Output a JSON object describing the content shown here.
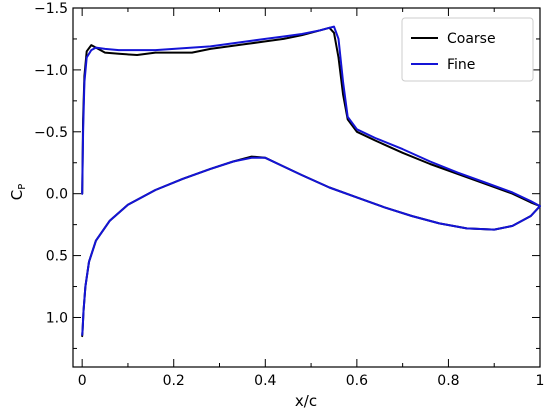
{
  "chart_data": {
    "type": "line",
    "title": "",
    "xlabel": "x/c",
    "ylabel_main": "C",
    "ylabel_sub": "P",
    "xlim": [
      -0.02,
      1.0
    ],
    "ylim": [
      1.4,
      -1.5
    ],
    "y_inverted": true,
    "grid": false,
    "legend_position": "top-right",
    "x_ticks": [
      0,
      0.2,
      0.4,
      0.6,
      0.8,
      1
    ],
    "x_tick_labels": [
      "0",
      "0.2",
      "0.4",
      "0.6",
      "0.8",
      "1"
    ],
    "y_ticks": [
      -1.5,
      -1.0,
      -0.5,
      0.0,
      0.5,
      1.0
    ],
    "y_tick_labels": [
      "−1.5",
      "−1.0",
      "−0.5",
      "0.0",
      "0.5",
      "1.0"
    ],
    "series": [
      {
        "name": "Coarse",
        "color": "#000000",
        "x": [
          0.0,
          0.002,
          0.005,
          0.01,
          0.02,
          0.03,
          0.05,
          0.08,
          0.12,
          0.16,
          0.2,
          0.24,
          0.28,
          0.32,
          0.36,
          0.4,
          0.44,
          0.48,
          0.52,
          0.54,
          0.55,
          0.56,
          0.57,
          0.58,
          0.6,
          0.64,
          0.7,
          0.76,
          0.82,
          0.88,
          0.94,
          0.98,
          1.0,
          0.98,
          0.94,
          0.9,
          0.84,
          0.78,
          0.72,
          0.66,
          0.6,
          0.54,
          0.48,
          0.44,
          0.4,
          0.37,
          0.33,
          0.28,
          0.22,
          0.16,
          0.1,
          0.06,
          0.03,
          0.015,
          0.007,
          0.003,
          0.001,
          0.0
        ],
        "y": [
          0.0,
          -0.6,
          -0.95,
          -1.15,
          -1.2,
          -1.18,
          -1.14,
          -1.13,
          -1.12,
          -1.14,
          -1.14,
          -1.14,
          -1.17,
          -1.19,
          -1.21,
          -1.23,
          -1.25,
          -1.28,
          -1.32,
          -1.34,
          -1.3,
          -1.1,
          -0.8,
          -0.6,
          -0.5,
          -0.43,
          -0.33,
          -0.24,
          -0.16,
          -0.08,
          0.0,
          0.07,
          0.1,
          0.18,
          0.26,
          0.29,
          0.28,
          0.24,
          0.18,
          0.11,
          0.03,
          -0.05,
          -0.15,
          -0.22,
          -0.29,
          -0.3,
          -0.26,
          -0.2,
          -0.12,
          -0.03,
          0.09,
          0.22,
          0.38,
          0.55,
          0.75,
          0.95,
          1.1,
          1.15
        ]
      },
      {
        "name": "Fine",
        "color": "#1414d6",
        "x": [
          0.0,
          0.002,
          0.005,
          0.01,
          0.02,
          0.03,
          0.05,
          0.08,
          0.12,
          0.16,
          0.2,
          0.24,
          0.28,
          0.32,
          0.36,
          0.4,
          0.44,
          0.48,
          0.52,
          0.54,
          0.55,
          0.56,
          0.57,
          0.58,
          0.6,
          0.64,
          0.7,
          0.76,
          0.82,
          0.88,
          0.94,
          0.98,
          1.0,
          0.98,
          0.94,
          0.9,
          0.84,
          0.78,
          0.72,
          0.66,
          0.6,
          0.54,
          0.48,
          0.44,
          0.4,
          0.37,
          0.33,
          0.28,
          0.22,
          0.16,
          0.1,
          0.06,
          0.03,
          0.015,
          0.007,
          0.003,
          0.001,
          0.0
        ],
        "y": [
          0.0,
          -0.5,
          -0.9,
          -1.1,
          -1.16,
          -1.18,
          -1.17,
          -1.16,
          -1.16,
          -1.16,
          -1.17,
          -1.18,
          -1.19,
          -1.21,
          -1.23,
          -1.25,
          -1.27,
          -1.29,
          -1.32,
          -1.34,
          -1.35,
          -1.25,
          -0.9,
          -0.62,
          -0.52,
          -0.45,
          -0.36,
          -0.26,
          -0.17,
          -0.09,
          -0.01,
          0.06,
          0.1,
          0.18,
          0.26,
          0.29,
          0.28,
          0.24,
          0.18,
          0.11,
          0.03,
          -0.05,
          -0.15,
          -0.22,
          -0.29,
          -0.29,
          -0.26,
          -0.2,
          -0.12,
          -0.03,
          0.09,
          0.22,
          0.38,
          0.55,
          0.75,
          0.95,
          1.1,
          1.14
        ]
      }
    ]
  }
}
